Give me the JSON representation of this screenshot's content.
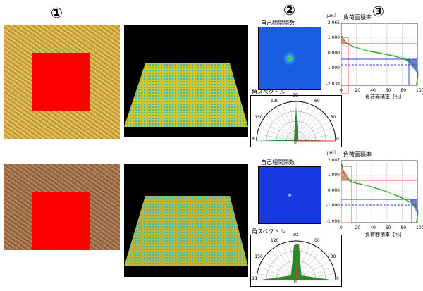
{
  "markers": [
    "①",
    "②",
    "③"
  ],
  "autocorr_label": "自己相関関数",
  "angle_spectrum_label": "角スペクトル",
  "bearing_title": "負荷面積率",
  "bearing_xlabel": "負荷面積率［％］",
  "bearing_unit": "［μm］",
  "polar_ticks": [
    "180",
    "150",
    "120",
    "90",
    "60",
    "30",
    "0"
  ],
  "polar_bottom": "0",
  "x_ticks": [
    "0",
    "20",
    "40",
    "60",
    "80",
    "100"
  ],
  "panels": [
    {
      "y_ticks": [
        "2.065",
        "1.000",
        "0.000",
        "-1.000",
        "-2.038"
      ]
    },
    {
      "y_ticks": [
        "2.007",
        "1.000",
        "0.000",
        "-1.000",
        "-1.999"
      ]
    }
  ],
  "colors": {
    "curve": "#2a9a2a",
    "red": "#f05050",
    "blue": "#3344dd"
  }
}
